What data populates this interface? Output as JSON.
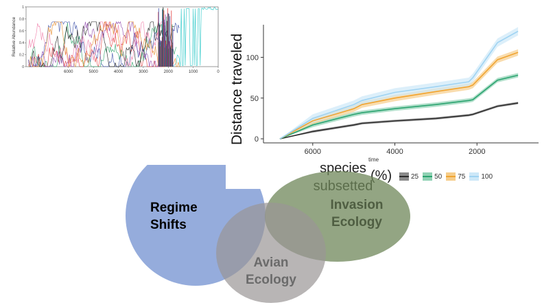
{
  "chart_data": [
    {
      "type": "line",
      "ylabel": "Relative Abundance",
      "xlabel": "",
      "xlim": [
        7700,
        0
      ],
      "ylim": [
        0,
        1
      ],
      "x_ticks": [
        6000,
        5000,
        4000,
        3000,
        2000,
        1000,
        0
      ],
      "y_ticks": [
        "0",
        "0.2",
        "0.4",
        "0.6",
        "0.8",
        "1"
      ],
      "colors": [
        "#e23b3b",
        "#3a4fa8",
        "#2fa36b",
        "#1b1b1b",
        "#8e44ad",
        "#f07ca8",
        "#21c6c6",
        "#e58b2a"
      ],
      "series_note_count": 8
    },
    {
      "type": "line",
      "xlabel": "time",
      "ylabel": "Distance traveled",
      "xlim": [
        7200,
        500
      ],
      "ylim": [
        -5,
        140
      ],
      "x_ticks": [
        6000,
        4000,
        2000
      ],
      "y_ticks": [
        0,
        50,
        100
      ],
      "legend_title": "species\nsubsetted",
      "legend_unit": "(%)",
      "legend_placement": "bottom",
      "x": [
        6800,
        6000,
        5000,
        4800,
        4000,
        3000,
        2200,
        2100,
        1500,
        1000
      ],
      "series": [
        {
          "name": "25",
          "color": "#2b2b2b",
          "band": "#8a8a8a",
          "values": [
            0,
            9,
            17,
            19,
            22,
            25,
            29,
            30,
            40,
            44
          ]
        },
        {
          "name": "50",
          "color": "#2aa36f",
          "band": "#8fd1b3",
          "values": [
            0,
            17,
            30,
            32,
            37,
            42,
            47,
            48,
            72,
            78
          ]
        },
        {
          "name": "75",
          "color": "#f0a431",
          "band": "#f6cd8a",
          "values": [
            0,
            22,
            37,
            42,
            50,
            58,
            64,
            66,
            97,
            106
          ]
        },
        {
          "name": "100",
          "color": "#9fd3f2",
          "band": "#cde8f8",
          "values": [
            0,
            25,
            42,
            47,
            57,
            64,
            70,
            75,
            118,
            132
          ]
        }
      ]
    }
  ],
  "venn": {
    "circles": [
      {
        "label": "Regime\nShifts",
        "color": "#7b97d3",
        "text_color": "#000000"
      },
      {
        "label": "Invasion\nEcology",
        "color": "#6f875a",
        "text_color": "#4f5e42"
      },
      {
        "label": "Avian\nEcology",
        "color": "#9a9595",
        "text_color": "#6b6b6b"
      }
    ]
  }
}
